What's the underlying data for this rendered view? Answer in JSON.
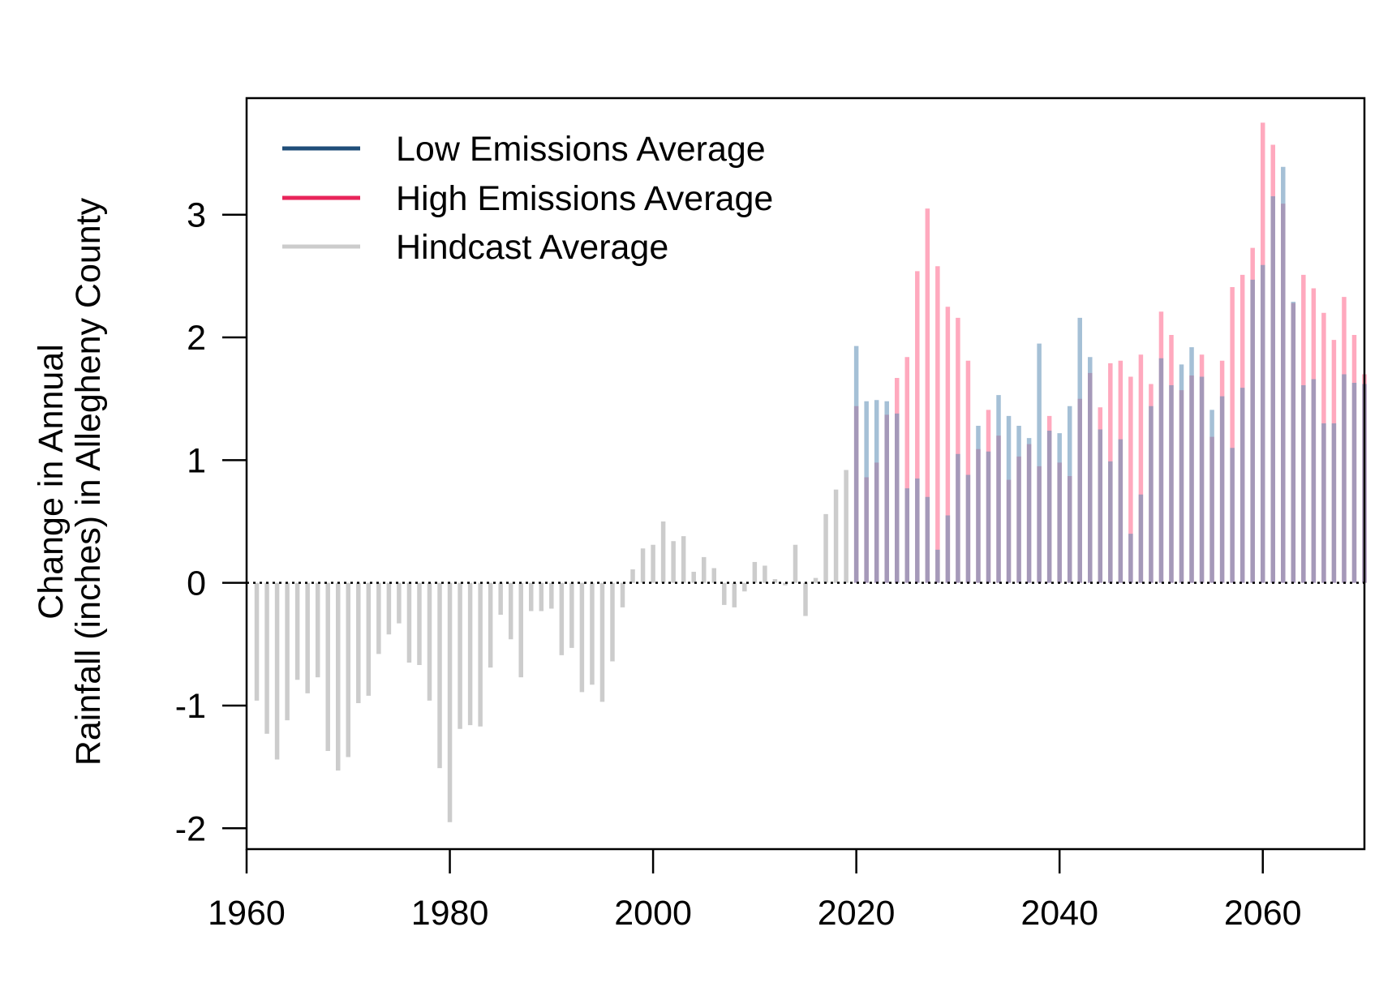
{
  "chart_data": {
    "type": "bar",
    "title": "",
    "xlabel": "",
    "ylabel_lines": [
      "Change in Annual",
      "Rainfall (inches) in Allegheny County"
    ],
    "xlim": [
      1960,
      2070
    ],
    "ylim": [
      -2.17,
      3.95
    ],
    "x_ticks": [
      1960,
      1980,
      2000,
      2020,
      2040,
      2060
    ],
    "x_tick_labels": [
      "1960",
      "1980",
      "2000",
      "2020",
      "2040",
      "2060"
    ],
    "y_ticks": [
      -2,
      -1,
      0,
      1,
      2,
      3
    ],
    "y_tick_labels": [
      "-2",
      "-1",
      "0",
      "1",
      "2",
      "3"
    ],
    "reference_line": 0,
    "grid": false,
    "legend_position": "top-left",
    "legend": [
      {
        "label": "Low Emissions Average",
        "color": "#1f4e79"
      },
      {
        "label": "High Emissions Average",
        "color": "#e8245a"
      },
      {
        "label": "Hindcast Average",
        "color": "#cccccc"
      }
    ],
    "series": [
      {
        "name": "Hindcast Average",
        "color": "#cccccc",
        "opacity": 1,
        "x": [
          1961,
          1962,
          1963,
          1964,
          1965,
          1966,
          1967,
          1968,
          1969,
          1970,
          1971,
          1972,
          1973,
          1974,
          1975,
          1976,
          1977,
          1978,
          1979,
          1980,
          1981,
          1982,
          1983,
          1984,
          1985,
          1986,
          1987,
          1988,
          1989,
          1990,
          1991,
          1992,
          1993,
          1994,
          1995,
          1996,
          1997,
          1998,
          1999,
          2000,
          2001,
          2002,
          2003,
          2004,
          2005,
          2006,
          2007,
          2008,
          2009,
          2010,
          2011,
          2012,
          2013,
          2014,
          2015,
          2016,
          2017,
          2018,
          2019
        ],
        "values": [
          -0.96,
          -1.23,
          -1.44,
          -1.12,
          -0.79,
          -0.9,
          -0.77,
          -1.37,
          -1.53,
          -1.42,
          -0.98,
          -0.92,
          -0.58,
          -0.42,
          -0.33,
          -0.65,
          -0.67,
          -0.96,
          -1.51,
          -1.95,
          -1.19,
          -1.16,
          -1.17,
          -0.69,
          -0.26,
          -0.46,
          -0.77,
          -0.23,
          -0.23,
          -0.21,
          -0.59,
          -0.53,
          -0.89,
          -0.83,
          -0.97,
          -0.64,
          -0.2,
          0.11,
          0.28,
          0.31,
          0.5,
          0.34,
          0.38,
          0.09,
          0.21,
          0.12,
          -0.18,
          -0.2,
          -0.07,
          0.17,
          0.14,
          0.03,
          -0.02,
          0.31,
          -0.27,
          0.04,
          0.56,
          0.76,
          0.92
        ]
      },
      {
        "name": "High Emissions Average",
        "color": "#ff6f93",
        "opacity": 0.6,
        "x": [
          2020,
          2021,
          2022,
          2023,
          2024,
          2025,
          2026,
          2027,
          2028,
          2029,
          2030,
          2031,
          2032,
          2033,
          2034,
          2035,
          2036,
          2037,
          2038,
          2039,
          2040,
          2041,
          2042,
          2043,
          2044,
          2045,
          2046,
          2047,
          2048,
          2049,
          2050,
          2051,
          2052,
          2053,
          2054,
          2055,
          2056,
          2057,
          2058,
          2059,
          2060,
          2061,
          2062,
          2063,
          2064,
          2065,
          2066,
          2067,
          2068,
          2069,
          2070
        ],
        "values": [
          1.44,
          0.86,
          0.98,
          1.37,
          1.67,
          1.84,
          2.54,
          3.05,
          2.58,
          2.25,
          2.16,
          1.81,
          1.09,
          1.41,
          1.2,
          0.84,
          1.03,
          1.13,
          0.95,
          1.36,
          0.98,
          0.87,
          1.5,
          1.71,
          1.43,
          1.79,
          1.81,
          1.68,
          1.86,
          1.62,
          2.21,
          2.02,
          1.57,
          1.69,
          1.86,
          1.19,
          1.81,
          2.41,
          2.51,
          2.73,
          3.75,
          3.57,
          3.09,
          2.28,
          2.51,
          2.4,
          2.2,
          1.98,
          2.33,
          2.02,
          1.7
        ]
      },
      {
        "name": "Low Emissions Average",
        "color": "#5b8db5",
        "opacity": 0.55,
        "x": [
          2020,
          2021,
          2022,
          2023,
          2024,
          2025,
          2026,
          2027,
          2028,
          2029,
          2030,
          2031,
          2032,
          2033,
          2034,
          2035,
          2036,
          2037,
          2038,
          2039,
          2040,
          2041,
          2042,
          2043,
          2044,
          2045,
          2046,
          2047,
          2048,
          2049,
          2050,
          2051,
          2052,
          2053,
          2054,
          2055,
          2056,
          2057,
          2058,
          2059,
          2060,
          2061,
          2062,
          2063,
          2064,
          2065,
          2066,
          2067,
          2068,
          2069,
          2070
        ],
        "values": [
          1.93,
          1.48,
          1.49,
          1.48,
          1.38,
          0.77,
          0.85,
          0.7,
          0.27,
          0.55,
          1.05,
          0.88,
          1.28,
          1.07,
          1.53,
          1.36,
          1.28,
          1.18,
          1.95,
          1.24,
          1.22,
          1.44,
          2.16,
          1.84,
          1.25,
          0.99,
          1.17,
          0.4,
          0.72,
          1.44,
          1.83,
          1.61,
          1.78,
          1.92,
          1.68,
          1.41,
          1.52,
          1.1,
          1.59,
          2.47,
          2.59,
          3.15,
          3.39,
          2.29,
          1.61,
          1.66,
          1.3,
          1.3,
          1.7,
          1.63,
          1.62
        ]
      }
    ]
  }
}
